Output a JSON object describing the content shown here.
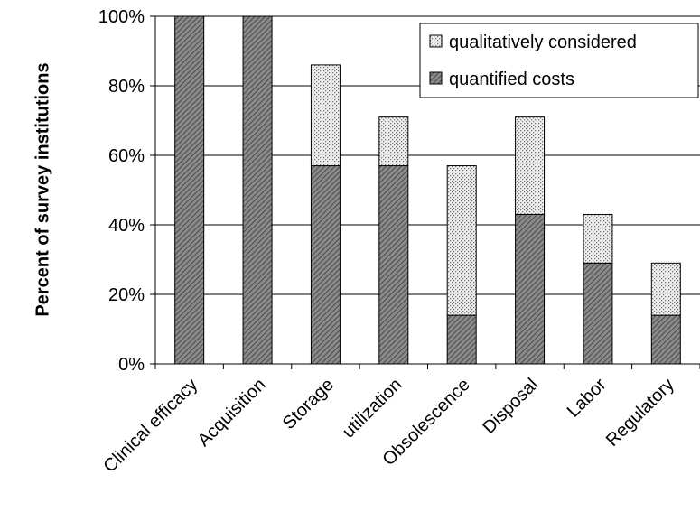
{
  "chart_data": {
    "type": "bar",
    "stacked": true,
    "categories": [
      "Clinical efficacy",
      "Acquisition",
      "Storage",
      "utilization",
      "Obsolescence",
      "Disposal",
      "Labor",
      "Regulatory"
    ],
    "series": [
      {
        "name": "quantified costs",
        "values": [
          100,
          100,
          57,
          57,
          14,
          43,
          29,
          14
        ],
        "color": "#808080",
        "pattern": "dense-diagonal-hatch"
      },
      {
        "name": "qualitatively considered",
        "values": [
          0,
          0,
          29,
          14,
          43,
          28,
          14,
          15
        ],
        "color": "#d8d8d8",
        "pattern": "dotted"
      }
    ],
    "title": "",
    "xlabel": "",
    "ylabel": "Percent of survey institutions",
    "ylim": [
      0,
      100
    ],
    "yticks": [
      "0%",
      "20%",
      "40%",
      "60%",
      "80%",
      "100%"
    ],
    "grid": true,
    "legend_position": "top-right",
    "legend_order": [
      "qualitatively considered",
      "quantified costs"
    ]
  }
}
